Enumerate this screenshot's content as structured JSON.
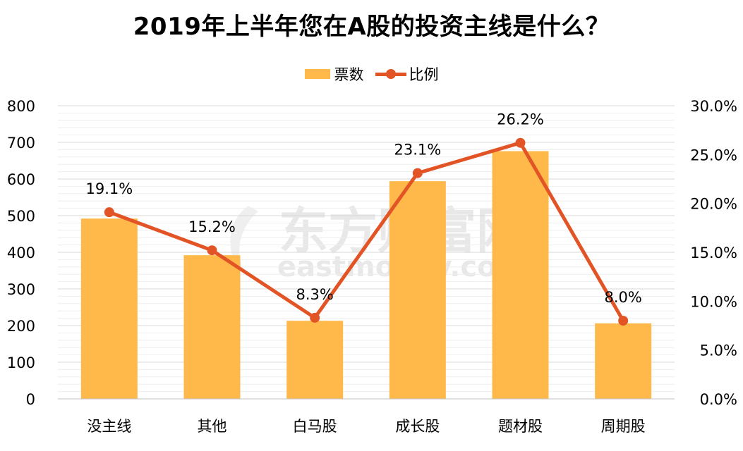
{
  "chart_data": {
    "type": "bar",
    "title": "2019年上半年您在A股的投资主线是什么？",
    "categories": [
      "没主线",
      "其他",
      "白马股",
      "成长股",
      "题材股",
      "周期股"
    ],
    "series": [
      {
        "name": "票数",
        "type": "bar",
        "axis": "left",
        "color": "#FFB94A",
        "values": [
          492,
          392,
          213,
          594,
          676,
          206
        ]
      },
      {
        "name": "比例",
        "type": "line",
        "axis": "right",
        "color": "#E25426",
        "values": [
          19.1,
          15.2,
          8.3,
          23.1,
          26.2,
          8.0
        ],
        "labels": [
          "19.1%",
          "15.2%",
          "8.3%",
          "23.1%",
          "26.2%",
          "8.0%"
        ]
      }
    ],
    "y_left": {
      "min": 0,
      "max": 800,
      "step": 100,
      "ticks": [
        "0",
        "100",
        "200",
        "300",
        "400",
        "500",
        "600",
        "700",
        "800"
      ]
    },
    "y_right": {
      "min": 0,
      "max": 30,
      "step": 5,
      "ticks": [
        "0.0%",
        "5.0%",
        "10.0%",
        "15.0%",
        "20.0%",
        "25.0%",
        "30.0%"
      ]
    },
    "legend_position": "top-center",
    "grid": true
  },
  "watermark": {
    "text_cn": "东方财富网",
    "text_en": "eastmoney.com"
  }
}
